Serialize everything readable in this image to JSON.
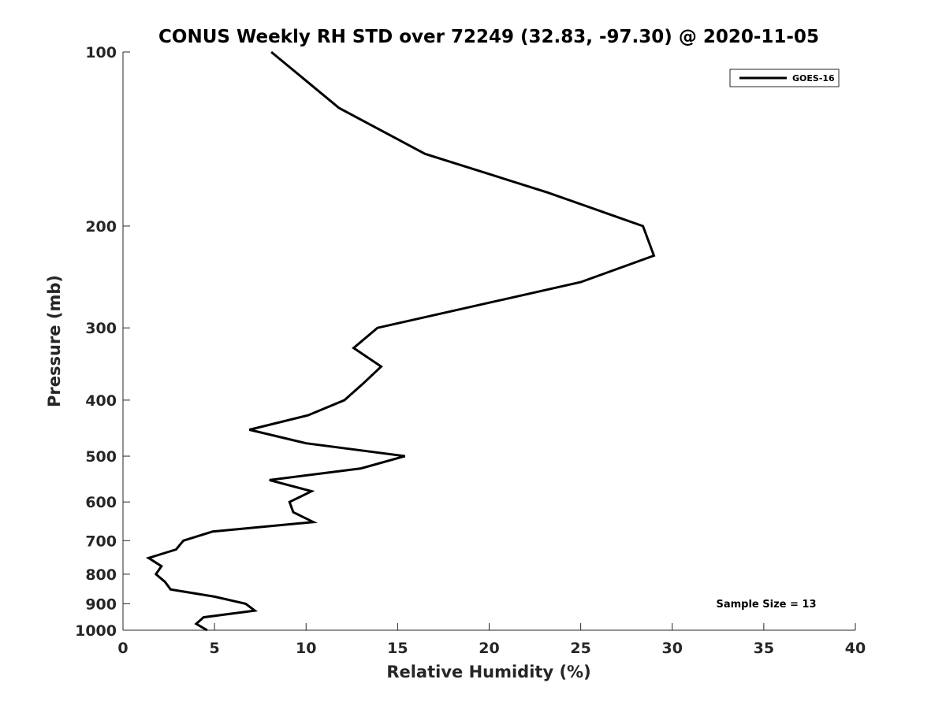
{
  "chart_data": {
    "type": "line",
    "title": "CONUS Weekly RH STD over 72249 (32.83, -97.30) @ 2020-11-05",
    "xlabel": "Relative Humidity (%)",
    "ylabel": "Pressure (mb)",
    "xlim": [
      0,
      40
    ],
    "ylim": [
      100,
      1000
    ],
    "y_scale": "log",
    "y_direction": "reversed",
    "x_ticks": [
      0,
      5,
      10,
      15,
      20,
      25,
      30,
      35,
      40
    ],
    "y_ticks": [
      100,
      200,
      300,
      400,
      500,
      600,
      700,
      800,
      900,
      1000
    ],
    "grid": false,
    "legend_position": "top-right",
    "annotation": "Sample Size = 13",
    "series": [
      {
        "name": "GOES-16",
        "color": "#000000",
        "points": [
          {
            "x": 8.1,
            "p": 100
          },
          {
            "x": 11.8,
            "p": 125
          },
          {
            "x": 16.5,
            "p": 150
          },
          {
            "x": 23.2,
            "p": 175
          },
          {
            "x": 28.4,
            "p": 200
          },
          {
            "x": 29.0,
            "p": 225
          },
          {
            "x": 25.0,
            "p": 250
          },
          {
            "x": 13.9,
            "p": 300
          },
          {
            "x": 12.6,
            "p": 325
          },
          {
            "x": 14.1,
            "p": 350
          },
          {
            "x": 13.1,
            "p": 375
          },
          {
            "x": 12.1,
            "p": 400
          },
          {
            "x": 10.1,
            "p": 425
          },
          {
            "x": 6.9,
            "p": 450
          },
          {
            "x": 10.0,
            "p": 475
          },
          {
            "x": 15.4,
            "p": 500
          },
          {
            "x": 13.0,
            "p": 525
          },
          {
            "x": 8.0,
            "p": 550
          },
          {
            "x": 10.3,
            "p": 575
          },
          {
            "x": 9.1,
            "p": 600
          },
          {
            "x": 9.3,
            "p": 625
          },
          {
            "x": 10.4,
            "p": 650
          },
          {
            "x": 4.9,
            "p": 675
          },
          {
            "x": 3.3,
            "p": 700
          },
          {
            "x": 2.9,
            "p": 725
          },
          {
            "x": 1.4,
            "p": 750
          },
          {
            "x": 2.1,
            "p": 775
          },
          {
            "x": 1.8,
            "p": 800
          },
          {
            "x": 2.3,
            "p": 825
          },
          {
            "x": 2.6,
            "p": 850
          },
          {
            "x": 5.0,
            "p": 875
          },
          {
            "x": 6.7,
            "p": 900
          },
          {
            "x": 7.2,
            "p": 925
          },
          {
            "x": 4.4,
            "p": 950
          },
          {
            "x": 4.0,
            "p": 975
          },
          {
            "x": 4.6,
            "p": 1000
          }
        ]
      }
    ]
  }
}
